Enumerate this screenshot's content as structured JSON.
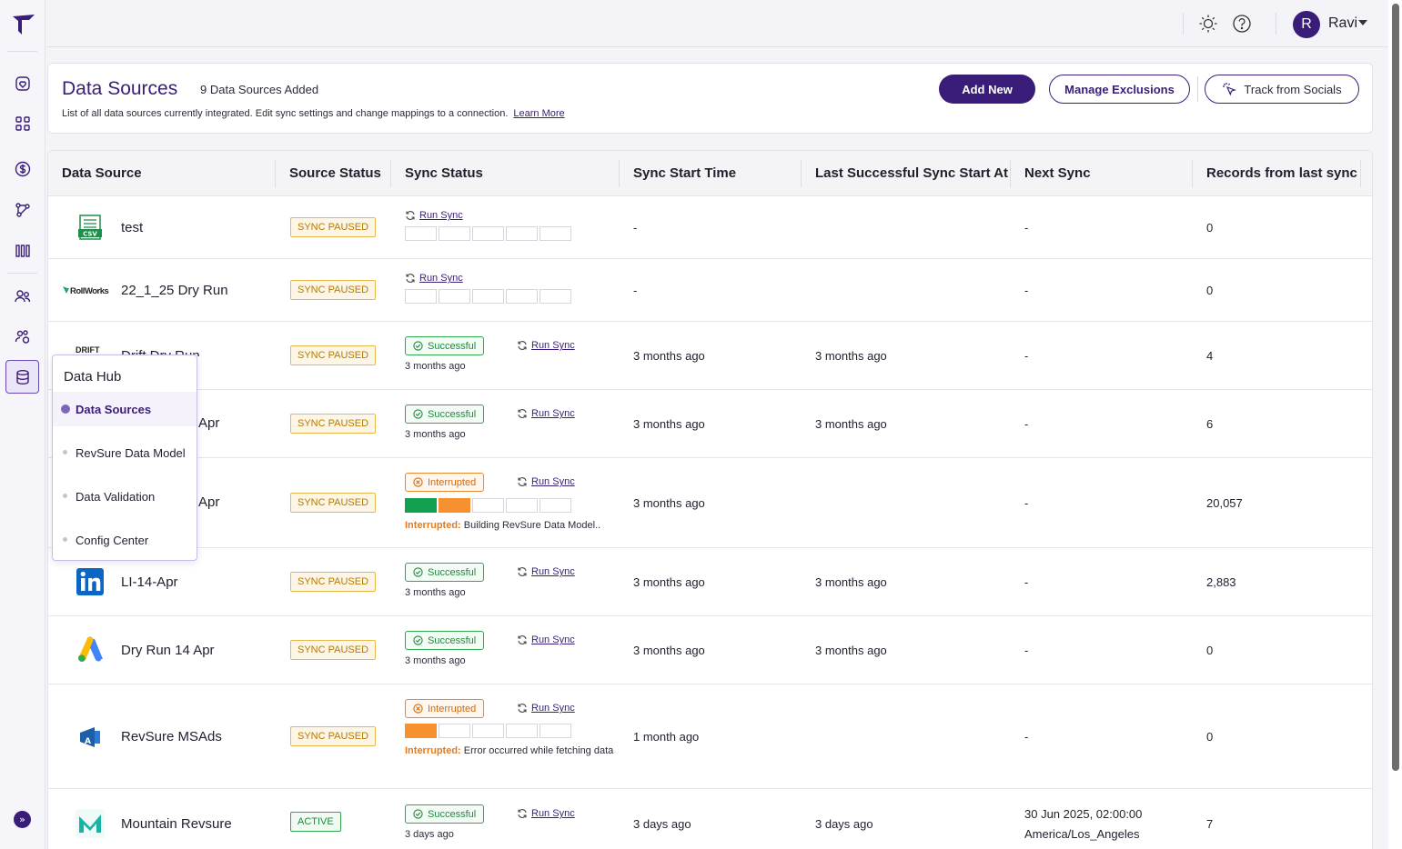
{
  "user": {
    "initial": "R",
    "name": "Ravi"
  },
  "header": {
    "title": "Data Sources",
    "count": "9 Data Sources Added",
    "description": "List of all data sources currently integrated. Edit sync settings and change mappings to a connection.",
    "learn_more": "Learn More",
    "add_new": "Add New",
    "manage_exclusions": "Manage Exclusions",
    "track_socials": "Track from Socials"
  },
  "columns": [
    "Data Source",
    "Source Status",
    "Sync Status",
    "Sync Start Time",
    "Last Successful Sync Start At",
    "Next Sync",
    "Records from last sync"
  ],
  "run_sync_label": "Run Sync",
  "rows": [
    {
      "name": "test",
      "logo": "csv-icon",
      "status": "SYNC PAUSED",
      "sync": "none",
      "bars": [
        0,
        0,
        0,
        0,
        0
      ],
      "start": "-",
      "last": "",
      "next": "-",
      "next2": "",
      "records": "0"
    },
    {
      "name": "22_1_25 Dry Run",
      "logo": "rollworks-logo",
      "status": "SYNC PAUSED",
      "sync": "none",
      "bars": [
        0,
        0,
        0,
        0,
        0
      ],
      "start": "-",
      "last": "",
      "next": "-",
      "next2": "",
      "records": "0"
    },
    {
      "name": "Drift Dry Run",
      "logo": "drift-logo",
      "status": "SYNC PAUSED",
      "sync": "Successful",
      "time": "3 months ago",
      "start": "3 months ago",
      "last": "3 months ago",
      "next": "-",
      "next2": "",
      "records": "4"
    },
    {
      "name": "Apr",
      "logo": "",
      "status": "SYNC PAUSED",
      "sync": "Successful",
      "time": "3 months ago",
      "start": "3 months ago",
      "last": "3 months ago",
      "next": "-",
      "next2": "",
      "records": "6"
    },
    {
      "name": "Apr",
      "logo": "",
      "status": "SYNC PAUSED",
      "sync": "Interrupted",
      "bars": [
        1,
        2,
        0,
        0,
        0
      ],
      "msg_label": "Interrupted:",
      "msg": "Building RevSure Data Model..",
      "start": "3 months ago",
      "last": "",
      "next": "-",
      "next2": "",
      "records": "20,057"
    },
    {
      "name": "LI-14-Apr",
      "logo": "linkedin-logo",
      "status": "SYNC PAUSED",
      "sync": "Successful",
      "time": "3 months ago",
      "start": "3 months ago",
      "last": "3 months ago",
      "next": "-",
      "next2": "",
      "records": "2,883"
    },
    {
      "name": "Dry Run 14 Apr",
      "logo": "google-ads-logo",
      "status": "SYNC PAUSED",
      "sync": "Successful",
      "time": "3 months ago",
      "start": "3 months ago",
      "last": "3 months ago",
      "next": "-",
      "next2": "",
      "records": "0"
    },
    {
      "name": "RevSure MSAds",
      "logo": "msads-logo",
      "status": "SYNC PAUSED",
      "sync": "Interrupted",
      "bars": [
        2,
        0,
        0,
        0,
        0
      ],
      "msg_label": "Interrupted:",
      "msg": "Error occurred while fetching data",
      "start": "1 month ago",
      "last": "",
      "next": "-",
      "next2": "",
      "records": "0"
    },
    {
      "name": "Mountain Revsure",
      "logo": "mountain-logo",
      "status": "ACTIVE",
      "sync": "Successful",
      "time": "3 days ago",
      "start": "3 days ago",
      "last": "3 days ago",
      "next": "30 Jun 2025, 02:00:00",
      "next2": "America/Los_Angeles",
      "records": "7"
    }
  ],
  "flyout": {
    "title": "Data Hub",
    "items": [
      "Data Sources",
      "RevSure Data Model",
      "Data Validation",
      "Config Center"
    ]
  },
  "colors": {
    "brand": "#3a1d78",
    "success": "#2fa84f",
    "warning": "#e8b84a",
    "interrupted": "#e98a2c"
  }
}
